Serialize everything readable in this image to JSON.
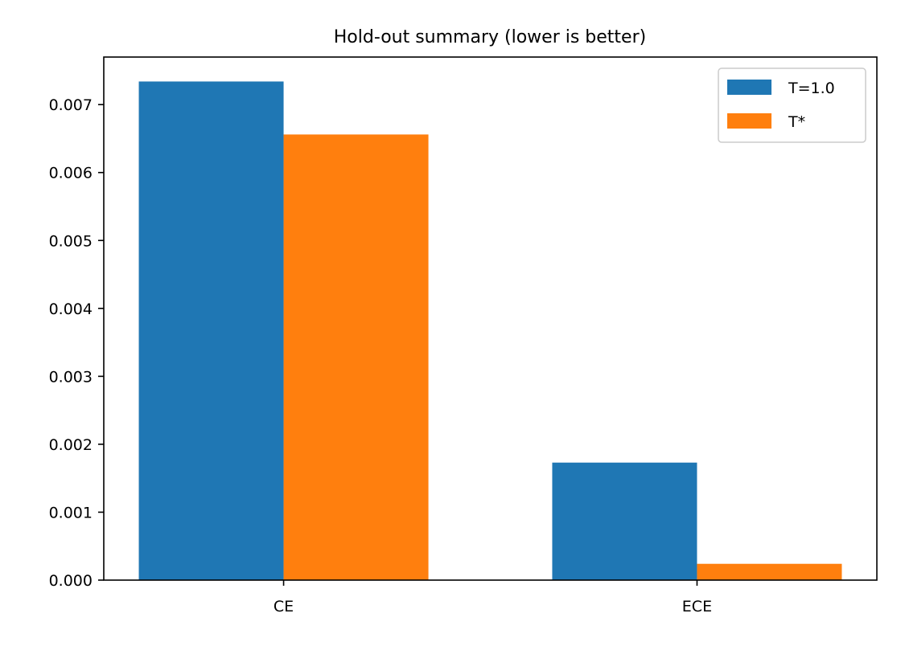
{
  "chart_data": {
    "type": "bar",
    "title": "Hold-out summary (lower is better)",
    "xlabel": "",
    "ylabel": "",
    "categories": [
      "CE",
      "ECE"
    ],
    "series": [
      {
        "name": "T=1.0",
        "color": "#1f77b4",
        "values": [
          0.00734,
          0.00173
        ]
      },
      {
        "name": "T*",
        "color": "#ff7f0e",
        "values": [
          0.00656,
          0.00024
        ]
      }
    ],
    "ylim": [
      0,
      0.0077
    ],
    "yticks": [
      0.0,
      0.001,
      0.002,
      0.003,
      0.004,
      0.005,
      0.006,
      0.007
    ],
    "ytick_labels": [
      "0.000",
      "0.001",
      "0.002",
      "0.003",
      "0.004",
      "0.005",
      "0.006",
      "0.007"
    ],
    "grid": false,
    "legend_position": "top-right"
  }
}
